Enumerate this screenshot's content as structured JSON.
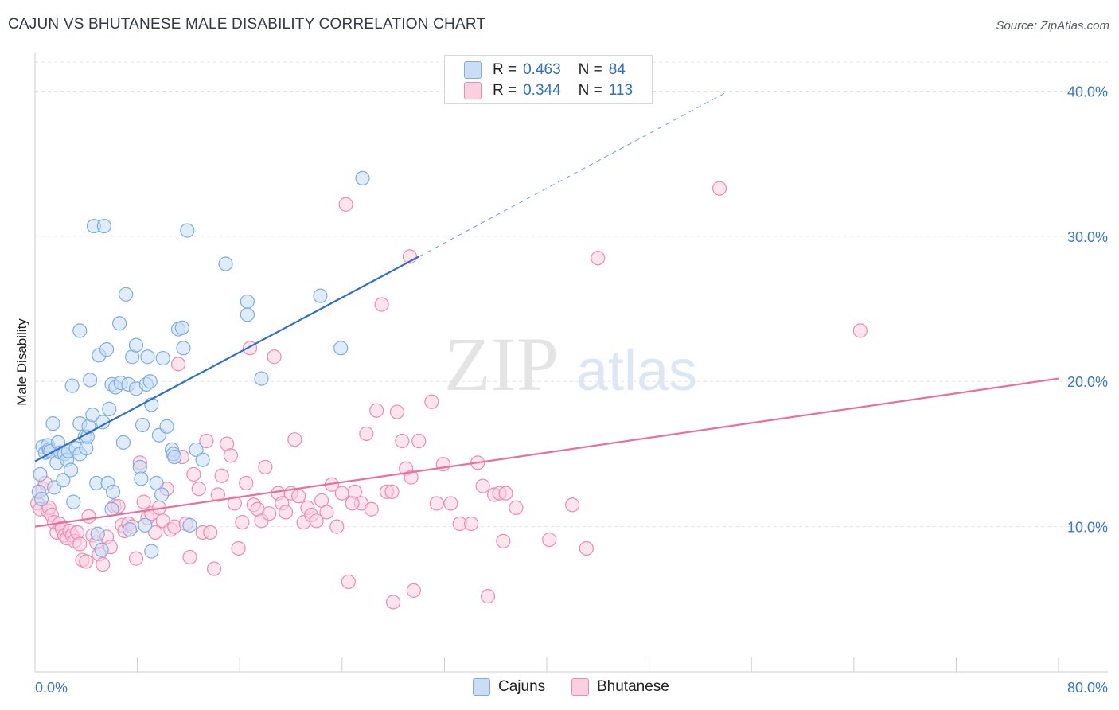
{
  "title": "CAJUN VS BHUTANESE MALE DISABILITY CORRELATION CHART",
  "source": "Source: ZipAtlas.com",
  "watermark": {
    "zip": "ZIP",
    "atlas": "atlas"
  },
  "colors": {
    "cajun": "#7aaee6",
    "cajun_fill": "#c9ddf5",
    "cajun_line": "#2b6fcf",
    "bhutanese": "#f08aac",
    "bhutanese_fill": "#fad0de",
    "bhutanese_line": "#e8709a",
    "axis_text": "#3a78c9"
  },
  "legend": {
    "rows": [
      {
        "r_label": "R =",
        "r_value": "0.463",
        "n_label": "N =",
        "n_value": "84"
      },
      {
        "r_label": "R =",
        "r_value": "0.344",
        "n_label": "N =",
        "n_value": "113"
      }
    ]
  },
  "chart_data": {
    "type": "scatter",
    "title": "CAJUN VS BHUTANESE MALE DISABILITY CORRELATION CHART",
    "xlabel": "",
    "ylabel": "Male Disability",
    "xlim": [
      0,
      80
    ],
    "ylim": [
      0,
      42
    ],
    "x_tick_labels": [
      "0.0%",
      "80.0%"
    ],
    "y_ticks": [
      10,
      20,
      30,
      40
    ],
    "y_tick_labels": [
      "10.0%",
      "20.0%",
      "30.0%",
      "40.0%"
    ],
    "grid": true,
    "legend_position": "bottom",
    "series": [
      {
        "name": "Cajuns",
        "r": 0.463,
        "n": 84,
        "trend": {
          "x_start": 0.0,
          "y_start": 14.5,
          "x_end": 30.0,
          "y_end": 28.6,
          "dashed_to_x": 54.0,
          "dashed_to_y": 39.9
        },
        "points": [
          [
            0.3,
            12.4
          ],
          [
            0.4,
            13.6
          ],
          [
            0.5,
            11.9
          ],
          [
            0.6,
            15.5
          ],
          [
            0.8,
            15.1
          ],
          [
            1.0,
            15.6
          ],
          [
            1.1,
            15.3
          ],
          [
            1.2,
            15.2
          ],
          [
            1.4,
            17.1
          ],
          [
            1.5,
            12.7
          ],
          [
            1.7,
            14.4
          ],
          [
            1.8,
            15.8
          ],
          [
            2.0,
            15.1
          ],
          [
            2.2,
            13.2
          ],
          [
            2.3,
            15.0
          ],
          [
            2.5,
            14.6
          ],
          [
            2.6,
            15.2
          ],
          [
            2.8,
            13.9
          ],
          [
            2.9,
            19.7
          ],
          [
            3.0,
            11.7
          ],
          [
            3.2,
            15.4
          ],
          [
            3.5,
            23.5
          ],
          [
            3.5,
            17.1
          ],
          [
            3.5,
            15.0
          ],
          [
            3.9,
            16.2
          ],
          [
            4.0,
            15.4
          ],
          [
            4.1,
            16.2
          ],
          [
            4.2,
            16.9
          ],
          [
            4.3,
            20.1
          ],
          [
            4.5,
            17.7
          ],
          [
            4.6,
            30.7
          ],
          [
            4.8,
            13.0
          ],
          [
            4.9,
            9.5
          ],
          [
            5.0,
            21.8
          ],
          [
            5.2,
            8.4
          ],
          [
            5.3,
            17.2
          ],
          [
            5.4,
            30.7
          ],
          [
            5.6,
            22.2
          ],
          [
            5.7,
            13.0
          ],
          [
            5.8,
            18.1
          ],
          [
            6.0,
            11.2
          ],
          [
            6.0,
            19.8
          ],
          [
            6.1,
            12.4
          ],
          [
            6.3,
            19.6
          ],
          [
            6.6,
            24.0
          ],
          [
            6.7,
            19.9
          ],
          [
            6.9,
            15.8
          ],
          [
            7.1,
            26.0
          ],
          [
            7.3,
            19.8
          ],
          [
            7.4,
            9.8
          ],
          [
            7.6,
            21.7
          ],
          [
            7.9,
            19.5
          ],
          [
            7.9,
            22.5
          ],
          [
            8.2,
            14.1
          ],
          [
            8.3,
            13.3
          ],
          [
            8.4,
            17.0
          ],
          [
            8.6,
            10.1
          ],
          [
            8.7,
            19.8
          ],
          [
            8.8,
            21.7
          ],
          [
            9.0,
            20.0
          ],
          [
            9.1,
            18.4
          ],
          [
            9.1,
            8.3
          ],
          [
            9.5,
            13.0
          ],
          [
            9.7,
            16.3
          ],
          [
            9.9,
            12.2
          ],
          [
            10.0,
            21.6
          ],
          [
            10.3,
            16.9
          ],
          [
            10.7,
            15.3
          ],
          [
            10.8,
            15.0
          ],
          [
            10.9,
            14.8
          ],
          [
            11.2,
            23.6
          ],
          [
            11.5,
            23.7
          ],
          [
            11.6,
            22.3
          ],
          [
            11.9,
            30.4
          ],
          [
            12.1,
            10.1
          ],
          [
            12.6,
            15.3
          ],
          [
            13.1,
            14.6
          ],
          [
            14.9,
            28.1
          ],
          [
            16.6,
            25.5
          ],
          [
            16.6,
            24.6
          ],
          [
            17.7,
            20.2
          ],
          [
            22.3,
            25.9
          ],
          [
            23.9,
            22.3
          ],
          [
            25.6,
            34.0
          ]
        ]
      },
      {
        "name": "Bhutanese",
        "r": 0.344,
        "n": 113,
        "trend": {
          "x_start": 0.0,
          "y_start": 10.0,
          "x_end": 80.0,
          "y_end": 20.2
        },
        "points": [
          [
            0.2,
            11.6
          ],
          [
            0.4,
            11.2
          ],
          [
            0.6,
            12.6
          ],
          [
            0.8,
            13.0
          ],
          [
            1.0,
            11.1
          ],
          [
            1.1,
            11.3
          ],
          [
            1.3,
            10.8
          ],
          [
            1.5,
            10.3
          ],
          [
            1.7,
            9.6
          ],
          [
            1.9,
            10.2
          ],
          [
            2.1,
            9.9
          ],
          [
            2.3,
            9.4
          ],
          [
            2.5,
            9.2
          ],
          [
            2.7,
            9.7
          ],
          [
            2.9,
            9.4
          ],
          [
            3.1,
            9.0
          ],
          [
            3.3,
            9.6
          ],
          [
            3.5,
            8.8
          ],
          [
            3.7,
            7.7
          ],
          [
            4.0,
            7.6
          ],
          [
            4.2,
            10.7
          ],
          [
            4.5,
            9.4
          ],
          [
            4.8,
            8.9
          ],
          [
            5.0,
            8.1
          ],
          [
            5.3,
            7.4
          ],
          [
            5.6,
            9.3
          ],
          [
            5.9,
            8.6
          ],
          [
            6.2,
            11.4
          ],
          [
            6.5,
            11.4
          ],
          [
            6.8,
            10.1
          ],
          [
            7.0,
            9.7
          ],
          [
            7.3,
            10.2
          ],
          [
            7.6,
            10.0
          ],
          [
            7.9,
            7.8
          ],
          [
            8.2,
            14.4
          ],
          [
            8.5,
            11.7
          ],
          [
            8.8,
            10.6
          ],
          [
            9.1,
            10.9
          ],
          [
            9.4,
            9.6
          ],
          [
            9.7,
            11.3
          ],
          [
            10.0,
            10.4
          ],
          [
            10.3,
            12.6
          ],
          [
            10.6,
            9.8
          ],
          [
            10.9,
            10.0
          ],
          [
            11.2,
            21.2
          ],
          [
            11.5,
            14.8
          ],
          [
            11.8,
            10.2
          ],
          [
            12.1,
            7.9
          ],
          [
            12.4,
            13.6
          ],
          [
            12.8,
            12.6
          ],
          [
            13.1,
            9.6
          ],
          [
            13.4,
            15.9
          ],
          [
            13.7,
            9.6
          ],
          [
            14.0,
            7.1
          ],
          [
            14.3,
            12.2
          ],
          [
            14.6,
            13.5
          ],
          [
            15.0,
            15.7
          ],
          [
            15.3,
            14.9
          ],
          [
            15.6,
            11.6
          ],
          [
            15.9,
            8.5
          ],
          [
            16.2,
            10.3
          ],
          [
            16.5,
            13.0
          ],
          [
            16.8,
            22.3
          ],
          [
            17.1,
            11.5
          ],
          [
            17.4,
            11.2
          ],
          [
            17.7,
            10.4
          ],
          [
            18.0,
            14.1
          ],
          [
            18.3,
            10.9
          ],
          [
            18.7,
            21.7
          ],
          [
            19.0,
            12.3
          ],
          [
            19.3,
            11.6
          ],
          [
            19.6,
            11.0
          ],
          [
            20.0,
            12.3
          ],
          [
            20.3,
            16.0
          ],
          [
            20.6,
            12.1
          ],
          [
            21.0,
            10.3
          ],
          [
            21.3,
            11.3
          ],
          [
            21.6,
            10.8
          ],
          [
            22.0,
            10.4
          ],
          [
            22.4,
            11.8
          ],
          [
            22.8,
            11.0
          ],
          [
            23.2,
            12.9
          ],
          [
            23.6,
            10.0
          ],
          [
            24.0,
            12.3
          ],
          [
            24.3,
            32.2
          ],
          [
            24.5,
            6.2
          ],
          [
            25.0,
            12.4
          ],
          [
            25.5,
            11.6
          ],
          [
            25.9,
            16.4
          ],
          [
            26.3,
            11.2
          ],
          [
            26.7,
            18.0
          ],
          [
            27.1,
            25.3
          ],
          [
            27.5,
            12.4
          ],
          [
            27.9,
            12.4
          ],
          [
            28.3,
            17.9
          ],
          [
            28.7,
            15.9
          ],
          [
            29.0,
            14.0
          ],
          [
            29.3,
            28.6
          ],
          [
            29.6,
            5.6
          ],
          [
            30.0,
            15.9
          ],
          [
            31.0,
            18.6
          ],
          [
            31.9,
            14.3
          ],
          [
            32.5,
            11.6
          ],
          [
            33.2,
            10.2
          ],
          [
            34.1,
            10.2
          ],
          [
            34.6,
            14.4
          ],
          [
            35.4,
            5.2
          ],
          [
            35.9,
            12.2
          ],
          [
            36.6,
            9.0
          ],
          [
            37.6,
            11.3
          ],
          [
            40.2,
            9.1
          ],
          [
            42.0,
            11.5
          ],
          [
            43.1,
            8.5
          ]
        ],
        "outliers": [
          [
            44.0,
            28.5
          ],
          [
            53.5,
            33.3
          ],
          [
            64.5,
            23.5
          ],
          [
            36.3,
            12.3
          ],
          [
            36.8,
            12.3
          ],
          [
            28.0,
            4.8
          ],
          [
            29.4,
            13.4
          ],
          [
            31.4,
            11.6
          ],
          [
            24.8,
            11.6
          ],
          [
            35.0,
            12.8
          ]
        ]
      }
    ]
  },
  "bottom_legend": {
    "cajun_label": "Cajuns",
    "bhutanese_label": "Bhutanese"
  }
}
